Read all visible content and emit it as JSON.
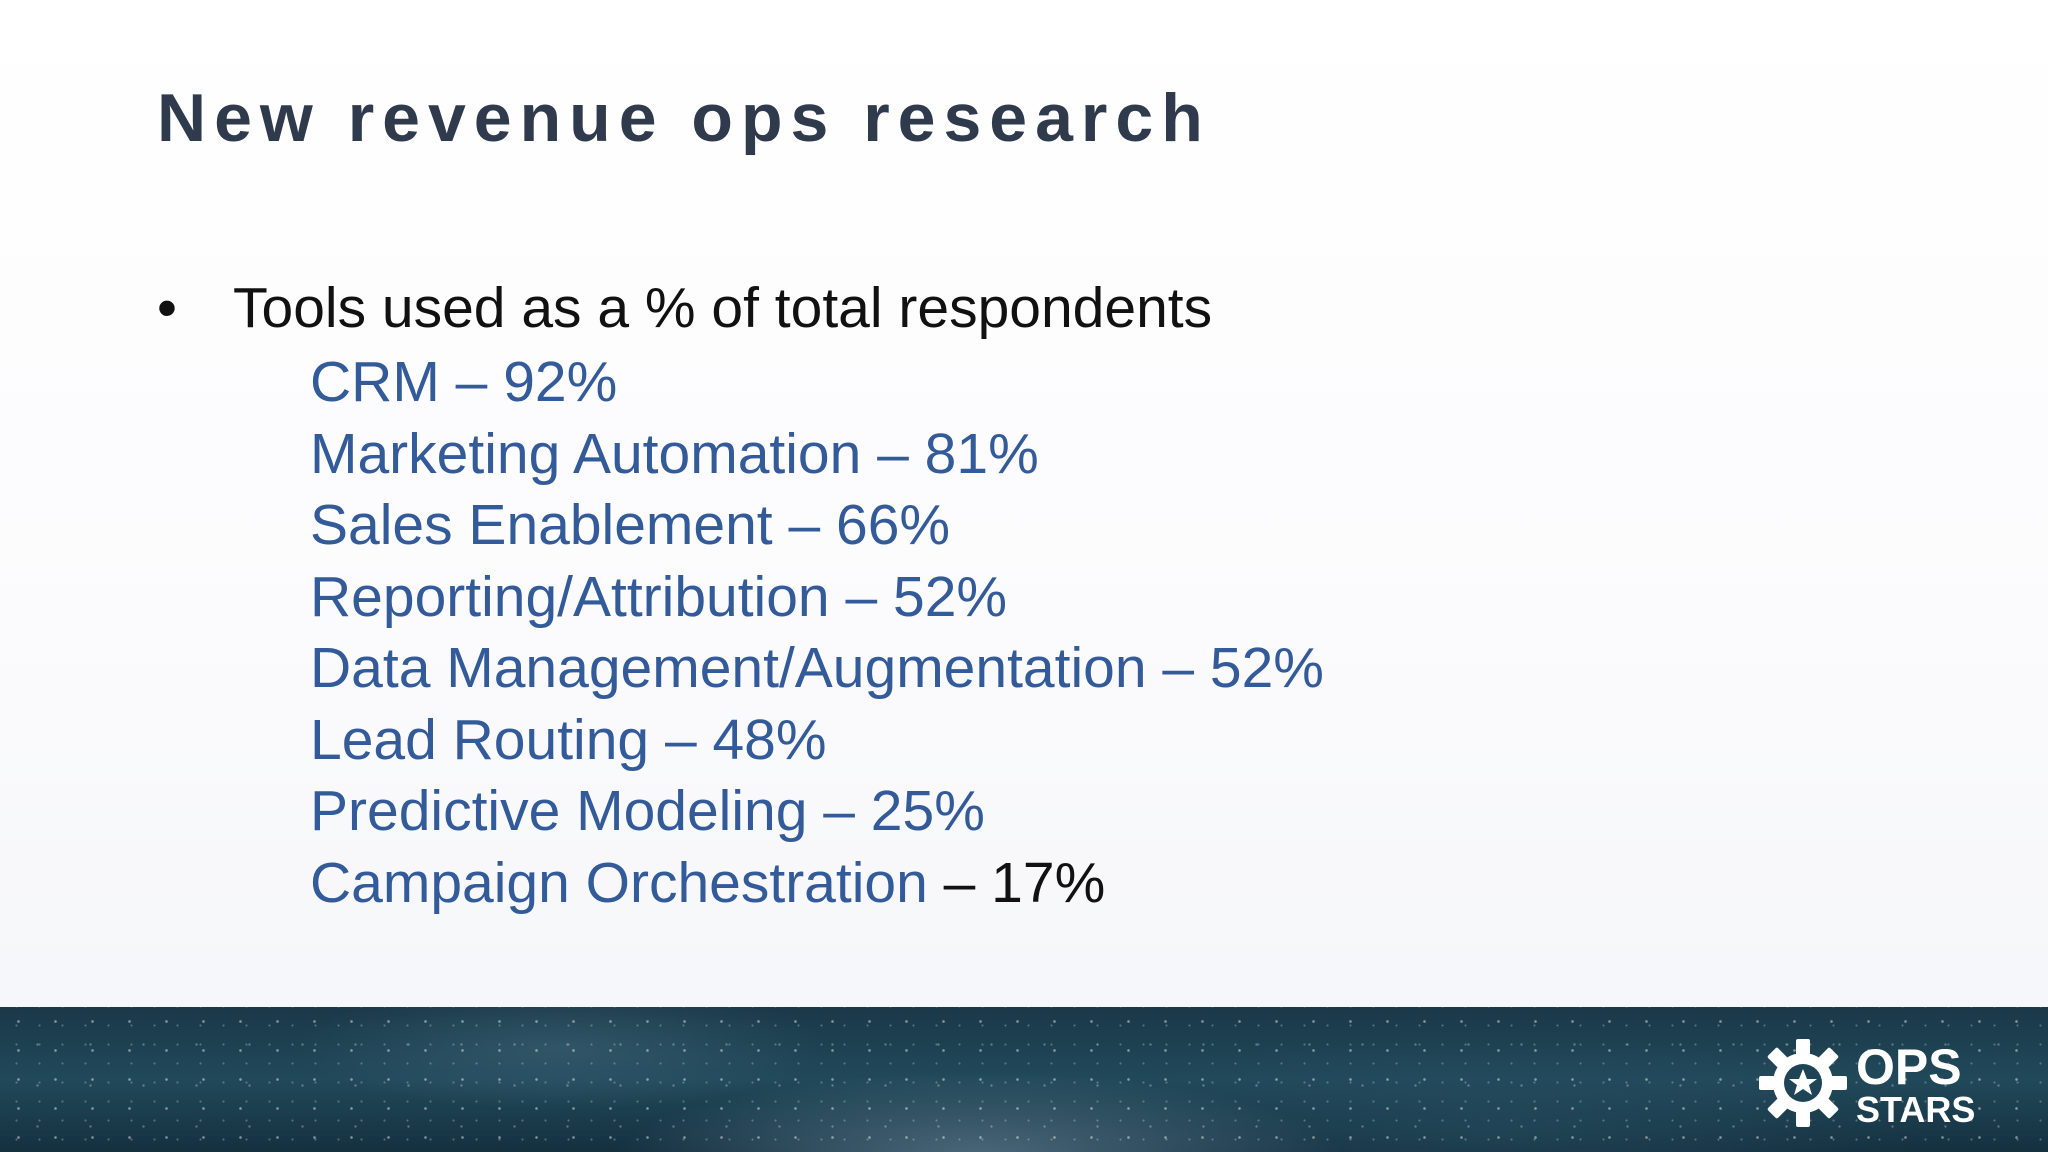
{
  "slide": {
    "title": "New revenue ops research"
  },
  "content": {
    "bullet_symbol": "•",
    "bullet_text": "Tools used as a % of total respondents",
    "tools": [
      {
        "name": "CRM",
        "separator": " – ",
        "value": "92%"
      },
      {
        "name": "Marketing Automation",
        "separator": " – ",
        "value": "81%"
      },
      {
        "name": "Sales Enablement",
        "separator": " – ",
        "value": "66%"
      },
      {
        "name": "Reporting/Attribution",
        "separator": " – ",
        "value": "52%"
      },
      {
        "name": "Data Management/Augmentation",
        "separator": " – ",
        "value": "52%"
      },
      {
        "name": "Lead Routing",
        "separator": " – ",
        "value": "48%"
      },
      {
        "name": "Predictive Modeling",
        "separator": " – ",
        "value": "25%"
      },
      {
        "name": "Campaign Orchestration",
        "separator": " – ",
        "value": "17%"
      }
    ]
  },
  "footer": {
    "logo_line1": "OPS",
    "logo_line2": "STARS",
    "logo_icon": "gear-icon"
  },
  "colors": {
    "title": "#2f3b4c",
    "list_item": "#335a99",
    "bullet_text": "#111111",
    "footer_band": "#1f4455"
  }
}
